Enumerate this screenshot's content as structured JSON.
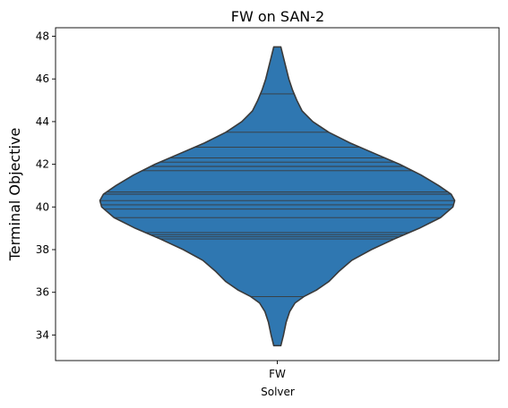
{
  "chart_data": {
    "type": "violin",
    "title": "FW on SAN-2",
    "xlabel": "Solver",
    "ylabel": "Terminal Objective",
    "categories": [
      "FW"
    ],
    "ylim": [
      32.8,
      48.4
    ],
    "yticks": [
      34,
      36,
      38,
      40,
      42,
      44,
      46,
      48
    ],
    "grid": false,
    "color": "#2f77b1",
    "outline_color": "#3a3a3a",
    "density_profile": [
      {
        "y": 33.5,
        "half_width": 0.02
      },
      {
        "y": 34.0,
        "half_width": 0.035
      },
      {
        "y": 34.6,
        "half_width": 0.05
      },
      {
        "y": 35.1,
        "half_width": 0.07
      },
      {
        "y": 35.5,
        "half_width": 0.1
      },
      {
        "y": 35.8,
        "half_width": 0.15
      },
      {
        "y": 36.1,
        "half_width": 0.22
      },
      {
        "y": 36.5,
        "half_width": 0.29
      },
      {
        "y": 37.0,
        "half_width": 0.35
      },
      {
        "y": 37.5,
        "half_width": 0.42
      },
      {
        "y": 38.0,
        "half_width": 0.53
      },
      {
        "y": 38.5,
        "half_width": 0.66
      },
      {
        "y": 39.0,
        "half_width": 0.8
      },
      {
        "y": 39.5,
        "half_width": 0.92
      },
      {
        "y": 40.0,
        "half_width": 0.99
      },
      {
        "y": 40.3,
        "half_width": 1.0
      },
      {
        "y": 40.6,
        "half_width": 0.98
      },
      {
        "y": 41.0,
        "half_width": 0.91
      },
      {
        "y": 41.5,
        "half_width": 0.81
      },
      {
        "y": 42.0,
        "half_width": 0.69
      },
      {
        "y": 42.5,
        "half_width": 0.55
      },
      {
        "y": 43.0,
        "half_width": 0.41
      },
      {
        "y": 43.5,
        "half_width": 0.29
      },
      {
        "y": 44.0,
        "half_width": 0.2
      },
      {
        "y": 44.5,
        "half_width": 0.14
      },
      {
        "y": 45.0,
        "half_width": 0.11
      },
      {
        "y": 45.5,
        "half_width": 0.085
      },
      {
        "y": 46.0,
        "half_width": 0.065
      },
      {
        "y": 46.5,
        "half_width": 0.05
      },
      {
        "y": 47.0,
        "half_width": 0.035
      },
      {
        "y": 47.5,
        "half_width": 0.02
      }
    ],
    "observations": [
      35.8,
      38.5,
      38.6,
      38.7,
      38.8,
      39.5,
      39.9,
      40.1,
      40.3,
      40.6,
      40.7,
      41.7,
      41.9,
      42.1,
      42.3,
      42.8,
      43.5,
      45.3
    ]
  }
}
